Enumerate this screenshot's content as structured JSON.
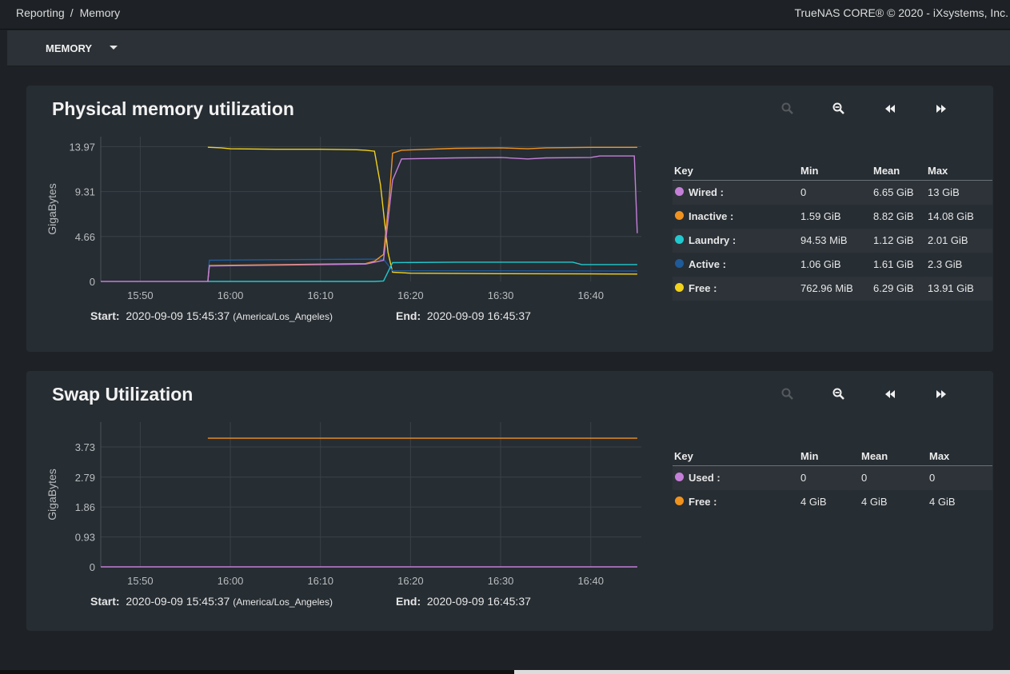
{
  "breadcrumb": {
    "parent": "Reporting",
    "current": "Memory"
  },
  "copyright": "TrueNAS CORE® © 2020 - iXsystems, Inc.",
  "toolbar": {
    "menu_label": "MEMORY"
  },
  "icons": {
    "zoom_in": "zoom-in-icon",
    "zoom_out": "zoom-out-icon",
    "rewind": "rewind-icon",
    "forward": "fast-forward-icon"
  },
  "charts": [
    {
      "title": "Physical memory utilization",
      "start_label": "Start:",
      "start_value": "2020-09-09 15:45:37",
      "timezone": "(America/Los_Angeles)",
      "end_label": "End:",
      "end_value": "2020-09-09 16:45:37",
      "legend": {
        "headers": {
          "key": "Key",
          "min": "Min",
          "mean": "Mean",
          "max": "Max"
        },
        "rows": [
          {
            "name": "Wired :",
            "min": "0",
            "mean": "6.65 GiB",
            "max": "13 GiB",
            "color": "#c47fd8"
          },
          {
            "name": "Inactive :",
            "min": "1.59 GiB",
            "mean": "8.82 GiB",
            "max": "14.08 GiB",
            "color": "#f0921e"
          },
          {
            "name": "Laundry :",
            "min": "94.53 MiB",
            "mean": "1.12 GiB",
            "max": "2.01 GiB",
            "color": "#1fc9cf"
          },
          {
            "name": "Active :",
            "min": "1.06 GiB",
            "mean": "1.61 GiB",
            "max": "2.3 GiB",
            "color": "#1f5a99"
          },
          {
            "name": "Free :",
            "min": "762.96 MiB",
            "mean": "6.29 GiB",
            "max": "13.91 GiB",
            "color": "#f2d21b"
          }
        ]
      }
    },
    {
      "title": "Swap Utilization",
      "start_label": "Start:",
      "start_value": "2020-09-09 15:45:37",
      "timezone": "(America/Los_Angeles)",
      "end_label": "End:",
      "end_value": "2020-09-09 16:45:37",
      "legend": {
        "headers": {
          "key": "Key",
          "min": "Min",
          "mean": "Mean",
          "max": "Max"
        },
        "rows": [
          {
            "name": "Used :",
            "min": "0",
            "mean": "0",
            "max": "0",
            "color": "#c47fd8"
          },
          {
            "name": "Free :",
            "min": "4 GiB",
            "mean": "4 GiB",
            "max": "4 GiB",
            "color": "#f0921e"
          }
        ]
      }
    }
  ],
  "chart_data": [
    {
      "type": "line",
      "title": "Physical memory utilization",
      "xlabel": "",
      "ylabel": "GigaBytes",
      "x_ticks": [
        "15:50",
        "16:00",
        "16:10",
        "16:20",
        "16:30",
        "16:40"
      ],
      "y_ticks": [
        0,
        4.66,
        9.31,
        13.97
      ],
      "xlim": [
        "15:45:37",
        "16:45:37"
      ],
      "ylim": [
        0,
        15
      ],
      "grid": true,
      "series": [
        {
          "name": "Wired",
          "color": "#c47fd8",
          "points": [
            [
              "15:45:37",
              0
            ],
            [
              "15:57:30",
              0
            ],
            [
              "15:57:40",
              1.6
            ],
            [
              "16:02",
              1.65
            ],
            [
              "16:10",
              1.75
            ],
            [
              "16:15",
              1.8
            ],
            [
              "16:16",
              2.0
            ],
            [
              "16:17",
              2.2
            ],
            [
              "16:18",
              10.5
            ],
            [
              "16:19",
              12.7
            ],
            [
              "16:25",
              12.8
            ],
            [
              "16:30",
              12.85
            ],
            [
              "16:33",
              12.7
            ],
            [
              "16:35",
              12.8
            ],
            [
              "16:40",
              12.85
            ],
            [
              "16:41",
              13.0
            ],
            [
              "16:44",
              13.0
            ],
            [
              "16:44:50",
              13.0
            ],
            [
              "16:45:10",
              5.0
            ]
          ]
        },
        {
          "name": "Inactive",
          "color": "#f0921e",
          "points": [
            [
              "15:57:30",
              0
            ],
            [
              "15:57:40",
              1.65
            ],
            [
              "16:02",
              1.7
            ],
            [
              "16:10",
              1.8
            ],
            [
              "16:15",
              1.85
            ],
            [
              "16:16",
              2.1
            ],
            [
              "16:17",
              2.8
            ],
            [
              "16:17:40",
              9.0
            ],
            [
              "16:18",
              13.3
            ],
            [
              "16:19",
              13.6
            ],
            [
              "16:25",
              13.8
            ],
            [
              "16:30",
              13.85
            ],
            [
              "16:33",
              13.75
            ],
            [
              "16:35",
              13.85
            ],
            [
              "16:40",
              13.9
            ],
            [
              "16:45:10",
              13.9
            ]
          ]
        },
        {
          "name": "Laundry",
          "color": "#1fc9cf",
          "points": [
            [
              "15:57:30",
              0
            ],
            [
              "16:16",
              0
            ],
            [
              "16:17",
              0.05
            ],
            [
              "16:18",
              1.95
            ],
            [
              "16:25",
              2.0
            ],
            [
              "16:30",
              2.0
            ],
            [
              "16:35",
              2.0
            ],
            [
              "16:38",
              2.0
            ],
            [
              "16:39",
              1.75
            ],
            [
              "16:45:10",
              1.75
            ]
          ]
        },
        {
          "name": "Active",
          "color": "#1f5a99",
          "points": [
            [
              "15:57:30",
              0
            ],
            [
              "15:57:40",
              2.2
            ],
            [
              "16:05",
              2.25
            ],
            [
              "16:15",
              2.3
            ],
            [
              "16:17",
              2.3
            ],
            [
              "16:18",
              1.1
            ],
            [
              "16:30",
              1.1
            ],
            [
              "16:45:10",
              1.08
            ]
          ]
        },
        {
          "name": "Free",
          "color": "#f2d21b",
          "points": [
            [
              "15:57:30",
              13.91
            ],
            [
              "15:59",
              13.85
            ],
            [
              "16:00",
              13.75
            ],
            [
              "16:05",
              13.7
            ],
            [
              "16:10",
              13.7
            ],
            [
              "16:14",
              13.65
            ],
            [
              "16:15",
              13.6
            ],
            [
              "16:16",
              13.5
            ],
            [
              "16:16:40",
              10.0
            ],
            [
              "16:17:30",
              3.0
            ],
            [
              "16:18",
              0.95
            ],
            [
              "16:20",
              0.85
            ],
            [
              "16:30",
              0.8
            ],
            [
              "16:40",
              0.78
            ],
            [
              "16:45:10",
              0.76
            ]
          ]
        }
      ]
    },
    {
      "type": "line",
      "title": "Swap Utilization",
      "xlabel": "",
      "ylabel": "GigaBytes",
      "x_ticks": [
        "15:50",
        "16:00",
        "16:10",
        "16:20",
        "16:30",
        "16:40"
      ],
      "y_ticks": [
        0,
        0.93,
        1.86,
        2.79,
        3.73
      ],
      "xlim": [
        "15:45:37",
        "16:45:37"
      ],
      "ylim": [
        0,
        4.5
      ],
      "grid": true,
      "series": [
        {
          "name": "Used",
          "color": "#c47fd8",
          "points": [
            [
              "15:45:37",
              0
            ],
            [
              "16:45:10",
              0
            ]
          ]
        },
        {
          "name": "Free",
          "color": "#f0921e",
          "points": [
            [
              "15:57:30",
              4.0
            ],
            [
              "16:45:10",
              4.0
            ]
          ]
        }
      ]
    }
  ]
}
